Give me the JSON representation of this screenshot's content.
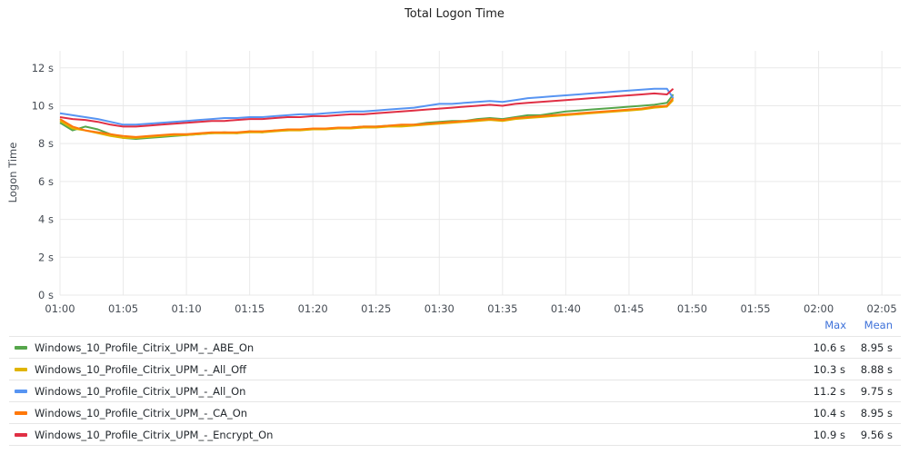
{
  "panel": {
    "title": "Total Logon Time"
  },
  "legend": {
    "max_header": "Max",
    "mean_header": "Mean"
  },
  "chart_data": {
    "type": "line",
    "title": "Total Logon Time",
    "xlabel": "",
    "ylabel": "Logon Time",
    "x_ticks": [
      "01:00",
      "01:05",
      "01:10",
      "01:15",
      "01:20",
      "01:25",
      "01:30",
      "01:35",
      "01:40",
      "01:45",
      "01:50",
      "01:55",
      "02:00",
      "02:05"
    ],
    "y_ticks": [
      "0 s",
      "2 s",
      "4 s",
      "6 s",
      "8 s",
      "10 s",
      "12 s"
    ],
    "x_range_minutes": [
      0,
      66.5
    ],
    "ylim": [
      0,
      12.9
    ],
    "grid": true,
    "legend_position": "bottom",
    "series": [
      {
        "name": "Windows_10_Profile_Citrix_UPM_-_ABE_On",
        "color": "#56a64b",
        "max": "10.6 s",
        "mean": "8.95 s",
        "points": [
          [
            0,
            9.1
          ],
          [
            1,
            8.7
          ],
          [
            2,
            8.9
          ],
          [
            3,
            8.75
          ],
          [
            4,
            8.5
          ],
          [
            5,
            8.3
          ],
          [
            6,
            8.25
          ],
          [
            7,
            8.3
          ],
          [
            8,
            8.35
          ],
          [
            9,
            8.4
          ],
          [
            10,
            8.45
          ],
          [
            11,
            8.5
          ],
          [
            12,
            8.55
          ],
          [
            13,
            8.6
          ],
          [
            14,
            8.55
          ],
          [
            15,
            8.65
          ],
          [
            16,
            8.6
          ],
          [
            17,
            8.7
          ],
          [
            18,
            8.7
          ],
          [
            19,
            8.75
          ],
          [
            20,
            8.75
          ],
          [
            21,
            8.8
          ],
          [
            22,
            8.8
          ],
          [
            23,
            8.85
          ],
          [
            24,
            8.9
          ],
          [
            25,
            8.9
          ],
          [
            26,
            8.95
          ],
          [
            27,
            8.95
          ],
          [
            28,
            9.0
          ],
          [
            29,
            9.1
          ],
          [
            30,
            9.15
          ],
          [
            31,
            9.2
          ],
          [
            32,
            9.2
          ],
          [
            33,
            9.3
          ],
          [
            34,
            9.35
          ],
          [
            35,
            9.3
          ],
          [
            36,
            9.4
          ],
          [
            37,
            9.5
          ],
          [
            38,
            9.5
          ],
          [
            39,
            9.6
          ],
          [
            40,
            9.7
          ],
          [
            41,
            9.75
          ],
          [
            42,
            9.8
          ],
          [
            43,
            9.85
          ],
          [
            44,
            9.9
          ],
          [
            45,
            9.95
          ],
          [
            46,
            10.0
          ],
          [
            47,
            10.05
          ],
          [
            48,
            10.15
          ],
          [
            48.5,
            10.6
          ]
        ]
      },
      {
        "name": "Windows_10_Profile_Citrix_UPM_-_All_Off",
        "color": "#e0b400",
        "max": "10.3 s",
        "mean": "8.88 s",
        "points": [
          [
            0,
            9.2
          ],
          [
            1,
            8.8
          ],
          [
            2,
            8.7
          ],
          [
            3,
            8.55
          ],
          [
            4,
            8.4
          ],
          [
            5,
            8.3
          ],
          [
            6,
            8.3
          ],
          [
            7,
            8.35
          ],
          [
            8,
            8.4
          ],
          [
            9,
            8.45
          ],
          [
            10,
            8.45
          ],
          [
            11,
            8.5
          ],
          [
            12,
            8.55
          ],
          [
            13,
            8.55
          ],
          [
            14,
            8.55
          ],
          [
            15,
            8.6
          ],
          [
            16,
            8.6
          ],
          [
            17,
            8.65
          ],
          [
            18,
            8.7
          ],
          [
            19,
            8.7
          ],
          [
            20,
            8.75
          ],
          [
            21,
            8.75
          ],
          [
            22,
            8.8
          ],
          [
            23,
            8.8
          ],
          [
            24,
            8.85
          ],
          [
            25,
            8.85
          ],
          [
            26,
            8.9
          ],
          [
            27,
            8.9
          ],
          [
            28,
            8.95
          ],
          [
            29,
            9.0
          ],
          [
            30,
            9.05
          ],
          [
            31,
            9.1
          ],
          [
            32,
            9.15
          ],
          [
            33,
            9.2
          ],
          [
            34,
            9.25
          ],
          [
            35,
            9.2
          ],
          [
            36,
            9.3
          ],
          [
            37,
            9.35
          ],
          [
            38,
            9.4
          ],
          [
            39,
            9.45
          ],
          [
            40,
            9.5
          ],
          [
            41,
            9.55
          ],
          [
            42,
            9.6
          ],
          [
            43,
            9.65
          ],
          [
            44,
            9.7
          ],
          [
            45,
            9.75
          ],
          [
            46,
            9.8
          ],
          [
            47,
            9.9
          ],
          [
            48,
            9.95
          ],
          [
            48.5,
            10.3
          ]
        ]
      },
      {
        "name": "Windows_10_Profile_Citrix_UPM_-_All_On",
        "color": "#5794f2",
        "max": "11.2 s",
        "mean": "9.75 s",
        "points": [
          [
            0,
            9.6
          ],
          [
            1,
            9.5
          ],
          [
            2,
            9.4
          ],
          [
            3,
            9.3
          ],
          [
            4,
            9.15
          ],
          [
            5,
            9.0
          ],
          [
            6,
            9.0
          ],
          [
            7,
            9.05
          ],
          [
            8,
            9.1
          ],
          [
            9,
            9.15
          ],
          [
            10,
            9.2
          ],
          [
            11,
            9.25
          ],
          [
            12,
            9.3
          ],
          [
            13,
            9.35
          ],
          [
            14,
            9.35
          ],
          [
            15,
            9.4
          ],
          [
            16,
            9.4
          ],
          [
            17,
            9.45
          ],
          [
            18,
            9.5
          ],
          [
            19,
            9.55
          ],
          [
            20,
            9.55
          ],
          [
            21,
            9.6
          ],
          [
            22,
            9.65
          ],
          [
            23,
            9.7
          ],
          [
            24,
            9.7
          ],
          [
            25,
            9.75
          ],
          [
            26,
            9.8
          ],
          [
            27,
            9.85
          ],
          [
            28,
            9.9
          ],
          [
            29,
            10.0
          ],
          [
            30,
            10.1
          ],
          [
            31,
            10.1
          ],
          [
            32,
            10.15
          ],
          [
            33,
            10.2
          ],
          [
            34,
            10.25
          ],
          [
            35,
            10.2
          ],
          [
            36,
            10.3
          ],
          [
            37,
            10.4
          ],
          [
            38,
            10.45
          ],
          [
            39,
            10.5
          ],
          [
            40,
            10.55
          ],
          [
            41,
            10.6
          ],
          [
            42,
            10.65
          ],
          [
            43,
            10.7
          ],
          [
            44,
            10.75
          ],
          [
            45,
            10.8
          ],
          [
            46,
            10.85
          ],
          [
            47,
            10.9
          ],
          [
            48,
            10.9
          ],
          [
            48.5,
            10.4
          ]
        ]
      },
      {
        "name": "Windows_10_Profile_Citrix_UPM_-_CA_On",
        "color": "#ff780a",
        "max": "10.4 s",
        "mean": "8.95 s",
        "points": [
          [
            0,
            9.3
          ],
          [
            1,
            8.9
          ],
          [
            2,
            8.7
          ],
          [
            3,
            8.6
          ],
          [
            4,
            8.5
          ],
          [
            5,
            8.4
          ],
          [
            6,
            8.35
          ],
          [
            7,
            8.4
          ],
          [
            8,
            8.45
          ],
          [
            9,
            8.5
          ],
          [
            10,
            8.5
          ],
          [
            11,
            8.55
          ],
          [
            12,
            8.6
          ],
          [
            13,
            8.6
          ],
          [
            14,
            8.6
          ],
          [
            15,
            8.65
          ],
          [
            16,
            8.65
          ],
          [
            17,
            8.7
          ],
          [
            18,
            8.75
          ],
          [
            19,
            8.75
          ],
          [
            20,
            8.8
          ],
          [
            21,
            8.8
          ],
          [
            22,
            8.85
          ],
          [
            23,
            8.85
          ],
          [
            24,
            8.9
          ],
          [
            25,
            8.9
          ],
          [
            26,
            8.95
          ],
          [
            27,
            9.0
          ],
          [
            28,
            9.0
          ],
          [
            29,
            9.05
          ],
          [
            30,
            9.1
          ],
          [
            31,
            9.15
          ],
          [
            32,
            9.2
          ],
          [
            33,
            9.25
          ],
          [
            34,
            9.3
          ],
          [
            35,
            9.25
          ],
          [
            36,
            9.35
          ],
          [
            37,
            9.4
          ],
          [
            38,
            9.45
          ],
          [
            39,
            9.5
          ],
          [
            40,
            9.55
          ],
          [
            41,
            9.6
          ],
          [
            42,
            9.65
          ],
          [
            43,
            9.7
          ],
          [
            44,
            9.75
          ],
          [
            45,
            9.8
          ],
          [
            46,
            9.85
          ],
          [
            47,
            9.95
          ],
          [
            48,
            10.0
          ],
          [
            48.5,
            10.4
          ]
        ]
      },
      {
        "name": "Windows_10_Profile_Citrix_UPM_-_Encrypt_On",
        "color": "#e02f44",
        "max": "10.9 s",
        "mean": "9.56 s",
        "points": [
          [
            0,
            9.4
          ],
          [
            1,
            9.3
          ],
          [
            2,
            9.25
          ],
          [
            3,
            9.15
          ],
          [
            4,
            9.0
          ],
          [
            5,
            8.9
          ],
          [
            6,
            8.9
          ],
          [
            7,
            8.95
          ],
          [
            8,
            9.0
          ],
          [
            9,
            9.05
          ],
          [
            10,
            9.1
          ],
          [
            11,
            9.15
          ],
          [
            12,
            9.2
          ],
          [
            13,
            9.2
          ],
          [
            14,
            9.25
          ],
          [
            15,
            9.3
          ],
          [
            16,
            9.3
          ],
          [
            17,
            9.35
          ],
          [
            18,
            9.4
          ],
          [
            19,
            9.4
          ],
          [
            20,
            9.45
          ],
          [
            21,
            9.45
          ],
          [
            22,
            9.5
          ],
          [
            23,
            9.55
          ],
          [
            24,
            9.55
          ],
          [
            25,
            9.6
          ],
          [
            26,
            9.65
          ],
          [
            27,
            9.7
          ],
          [
            28,
            9.75
          ],
          [
            29,
            9.8
          ],
          [
            30,
            9.85
          ],
          [
            31,
            9.9
          ],
          [
            32,
            9.95
          ],
          [
            33,
            10.0
          ],
          [
            34,
            10.05
          ],
          [
            35,
            10.0
          ],
          [
            36,
            10.1
          ],
          [
            37,
            10.15
          ],
          [
            38,
            10.2
          ],
          [
            39,
            10.25
          ],
          [
            40,
            10.3
          ],
          [
            41,
            10.35
          ],
          [
            42,
            10.4
          ],
          [
            43,
            10.45
          ],
          [
            44,
            10.5
          ],
          [
            45,
            10.55
          ],
          [
            46,
            10.6
          ],
          [
            47,
            10.65
          ],
          [
            48,
            10.6
          ],
          [
            48.5,
            10.9
          ]
        ]
      }
    ]
  }
}
